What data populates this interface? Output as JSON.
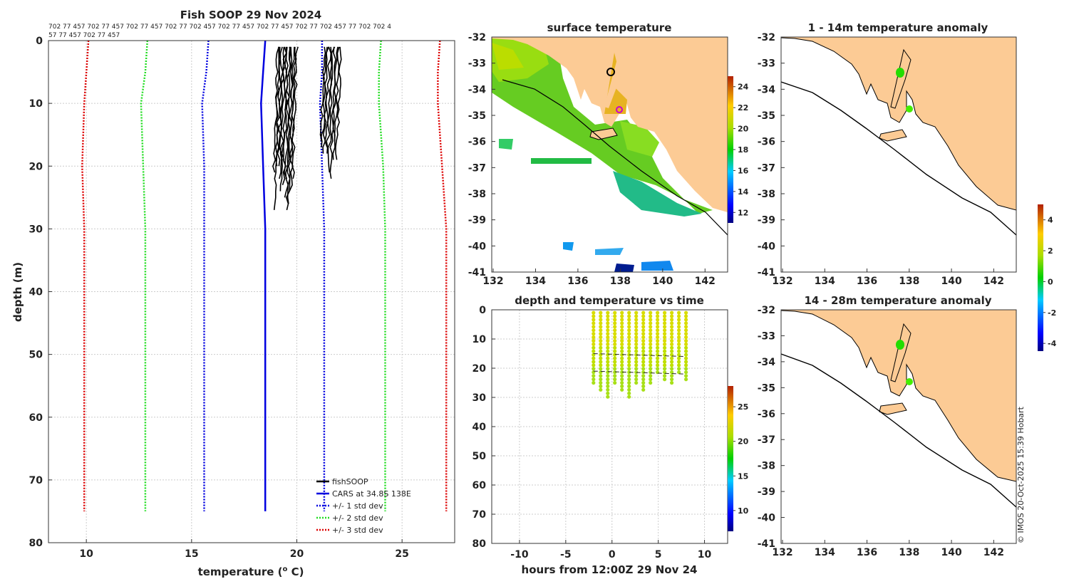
{
  "profile": {
    "title": "Fish SOOP 29 Nov 2024",
    "id_line1": "702 77 457 702 77 457 702 77 457 702 77 702 457 702 77 457 702 77 457 702 77 702 457 77 702 702 4",
    "id_line2": "57 77 457 702 77 457",
    "xlabel": "temperature (",
    "xlabel_sup": "o",
    "xlabel_end": " C)",
    "ylabel": "depth (m)",
    "xlim": [
      8.2,
      27.5
    ],
    "ylim": [
      0,
      80
    ],
    "xticks": [
      "10",
      "15",
      "20",
      "25"
    ],
    "yticks": [
      "0",
      "10",
      "20",
      "30",
      "40",
      "50",
      "60",
      "70",
      "80"
    ],
    "legend": [
      "fishSOOP",
      "CARS at 34.8S 138E",
      "+/- 1 std dev",
      "+/- 2 std dev",
      "+/- 3 std dev"
    ],
    "colors": {
      "fish": "#000000",
      "cars": "#0000e0",
      "sd1": "#0000e0",
      "sd2": "#22dd22",
      "sd3": "#dd0000"
    }
  },
  "chart_data": [
    {
      "type": "line",
      "title": "Fish SOOP 29 Nov 2024",
      "xlabel": "temperature (o C)",
      "ylabel": "depth (m)",
      "xlim": [
        8.2,
        27.5
      ],
      "ylim": [
        80,
        0
      ],
      "depth": [
        0,
        5,
        10,
        20,
        30,
        75
      ],
      "series": [
        {
          "name": "CARS at 34.8S 138E",
          "values": [
            18.5,
            18.4,
            18.3,
            18.4,
            18.5,
            18.5
          ]
        },
        {
          "name": "+1 std dev",
          "values": [
            21.2,
            21.2,
            21.1,
            21.2,
            21.3,
            21.3
          ]
        },
        {
          "name": "-1 std dev",
          "values": [
            15.8,
            15.7,
            15.5,
            15.6,
            15.6,
            15.6
          ]
        },
        {
          "name": "+2 std dev",
          "values": [
            24.0,
            23.9,
            23.9,
            24.1,
            24.2,
            24.2
          ]
        },
        {
          "name": "-2 std dev",
          "values": [
            12.9,
            12.8,
            12.6,
            12.7,
            12.8,
            12.8
          ]
        },
        {
          "name": "+3 std dev",
          "values": [
            26.8,
            26.7,
            26.7,
            26.9,
            27.1,
            27.1
          ]
        },
        {
          "name": "-3 std dev",
          "values": [
            10.1,
            10.0,
            9.9,
            9.8,
            9.9,
            9.9
          ]
        }
      ],
      "fishSOOP": {
        "group_a": {
          "temp_range": [
            19.1,
            20.0
          ],
          "depth_range": [
            1,
            28
          ]
        },
        "group_b": {
          "temp_range": [
            21.3,
            22.1
          ],
          "depth_range": [
            1,
            23
          ]
        }
      }
    },
    {
      "type": "heatmap",
      "title": "surface temperature",
      "xlim": [
        132,
        143
      ],
      "ylim": [
        -41,
        -32
      ],
      "xticks": [
        "132",
        "134",
        "136",
        "138",
        "140",
        "142"
      ],
      "yticks": [
        "-32",
        "-33",
        "-34",
        "-35",
        "-36",
        "-37",
        "-38",
        "-39",
        "-40",
        "-41"
      ],
      "colorbar": [
        "12",
        "14",
        "16",
        "18",
        "20",
        "22",
        "24"
      ],
      "colorbar_range": [
        11,
        25
      ]
    },
    {
      "type": "scatter",
      "title": "depth and temperature vs time",
      "xlabel": "hours from 12:00Z 29 Nov 24",
      "xlim": [
        -13,
        12.5
      ],
      "ylim": [
        80,
        0
      ],
      "xticks": [
        "-10",
        "-5",
        "0",
        "5",
        "10"
      ],
      "yticks": [
        "0",
        "10",
        "20",
        "30",
        "40",
        "50",
        "60",
        "70",
        "80"
      ],
      "time_range": [
        -2,
        8
      ],
      "depth_range": [
        1,
        28
      ],
      "colorbar": [
        "10",
        "15",
        "20",
        "25"
      ],
      "colorbar_range": [
        7,
        28
      ]
    },
    {
      "type": "heatmap",
      "title": "1 - 14m temperature anomaly",
      "xticks": [
        "132",
        "134",
        "136",
        "138",
        "140",
        "142"
      ],
      "yticks": [
        "-32",
        "-33",
        "-34",
        "-35",
        "-36",
        "-37",
        "-38",
        "-39",
        "-40",
        "-41"
      ],
      "points": [
        {
          "lon": 137.6,
          "lat": -33.3,
          "anomaly": 0.5
        },
        {
          "lon": 138.1,
          "lat": -34.8,
          "anomaly": 0.5
        }
      ]
    },
    {
      "type": "heatmap",
      "title": "14 - 28m temperature anomaly",
      "xticks": [
        "132",
        "134",
        "136",
        "138",
        "140",
        "142"
      ],
      "yticks": [
        "-32",
        "-33",
        "-34",
        "-35",
        "-36",
        "-37",
        "-38",
        "-39",
        "-40",
        "-41"
      ],
      "points": [
        {
          "lon": 137.6,
          "lat": -33.3,
          "anomaly": 0.5
        },
        {
          "lon": 138.1,
          "lat": -34.8,
          "anomaly": 0.5
        }
      ],
      "colorbar": [
        "-4",
        "-2",
        "0",
        "2",
        "4"
      ],
      "colorbar_range": [
        -4.5,
        5
      ]
    }
  ],
  "credit": "© IMOS 20-Oct-2025 15:39 Hobart"
}
